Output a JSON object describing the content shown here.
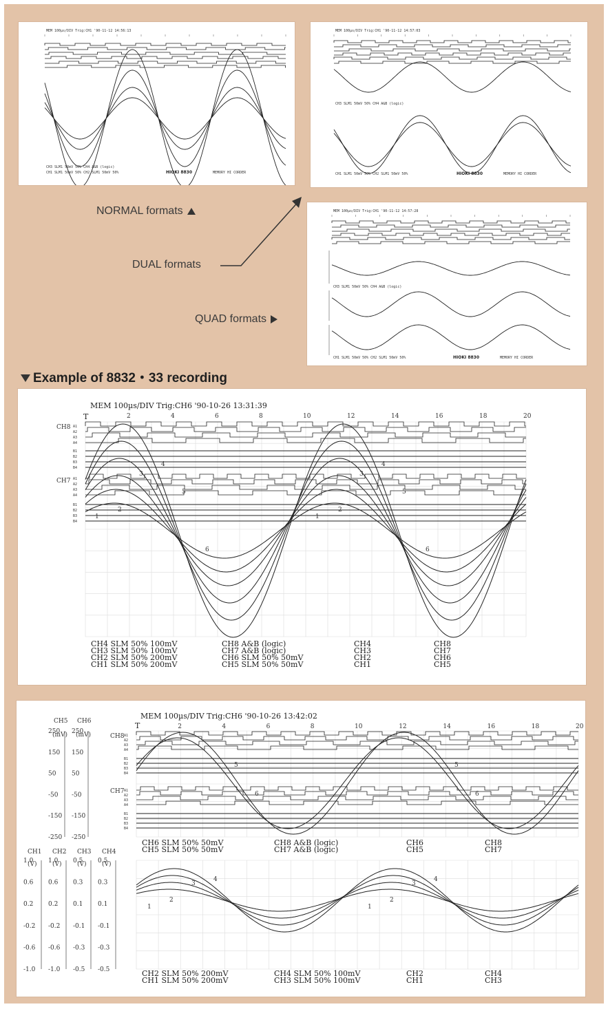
{
  "labels": {
    "normal": "NORMAL formats",
    "dual": "DUAL formats",
    "quad": "QUAD formats",
    "example_header": "Example of 8832・33 recording"
  },
  "thumb_normal": {
    "header": "MEM  100µs/DIV Trig:CH1 '90-11-12 14:56:13",
    "footer1": "CH3 SLM1  50mV  50%  CH4 A&B (logic)",
    "footer2": "CH1 SLM1  50mV  50%  CH2 SLM1  50mV  50%",
    "brand": "HIOKI 8830",
    "model_text": "MEMORY HI CORDER"
  },
  "thumb_dual": {
    "header": "MEM  100µs/DIV Trig:CH1 '90-11-12 14:57:03",
    "mid": "CH3 SLM1  50mV  50%  CH4 A&B (logic)",
    "footer": "CH1 SLM1  50mV  50%  CH2 SLM1  50mV  50%",
    "brand": "HIOKI 8830",
    "model_text": "MEMORY HI CORDER"
  },
  "thumb_quad": {
    "header": "MEM  100µs/DIV Trig:CH1 '90-11-12 14:57:28",
    "mid": "CH3 SLM1  50mV  50%  CH4 A&B (logic)",
    "footer": "CH1 SLM1  50mV  50%  CH2 SLM1  50mV  50%",
    "brand": "HIOKI 8830",
    "model_text": "MEMORY HI CORDER"
  },
  "panel1": {
    "header": "MEM   100µs/DIV Trig:CH6 '90-10-26 13:31:39",
    "ticks": [
      "2",
      "4",
      "6",
      "8",
      "10",
      "12",
      "14",
      "16",
      "18",
      "20"
    ],
    "trig_marker": "T",
    "ch_labels": [
      "CH8",
      "CH7"
    ],
    "logic_labels": [
      "A1",
      "A2",
      "A3",
      "A4",
      "B1",
      "B2",
      "B3",
      "B4"
    ],
    "wave_labels": [
      "1",
      "2",
      "3",
      "4",
      "5",
      "6"
    ],
    "footer_col1": [
      "CH4 SLM  50%   100mV",
      "CH3 SLM  50%   100mV",
      "CH2 SLM  50%   200mV",
      "CH1 SLM  50%   200mV"
    ],
    "footer_col2": [
      "CH8 A&B (logic)",
      "CH7 A&B (logic)",
      "CH6 SLM  50%    50mV",
      "CH5 SLM  50%    50mV"
    ],
    "footer_col3": [
      "CH4",
      "CH3",
      "CH2",
      "CH1"
    ],
    "footer_col4": [
      "CH8",
      "CH7",
      "CH6",
      "CH5"
    ]
  },
  "panel2": {
    "header": "MEM   100µs/DIV Trig:CH6 '90-10-26 13:42:02",
    "ticks": [
      "2",
      "4",
      "6",
      "8",
      "10",
      "12",
      "14",
      "16",
      "18",
      "20"
    ],
    "trig_marker": "T",
    "ch_labels": [
      "CH8",
      "CH7"
    ],
    "logic_labels": [
      "A1",
      "A2",
      "A3",
      "A4",
      "B1",
      "B2",
      "B3",
      "B4"
    ],
    "wave_labels_top": [
      "5",
      "6"
    ],
    "wave_labels_bottom": [
      "1",
      "2",
      "3",
      "4"
    ],
    "scale_top": {
      "headers": [
        "CH5",
        "CH6"
      ],
      "units": [
        "(mV)",
        "(mV)"
      ],
      "values": [
        "250",
        "150",
        "50",
        "-50",
        "-150",
        "-250"
      ]
    },
    "scale_bottom": {
      "headers": [
        "CH1",
        "CH2",
        "CH3",
        "CH4"
      ],
      "units": [
        "(V)",
        "(V)",
        "(V)",
        "(V)"
      ],
      "col1": [
        "1.0",
        "0.6",
        "0.2",
        "-0.2",
        "-0.6",
        "-1.0"
      ],
      "col2": [
        "1.0",
        "0.6",
        "0.2",
        "-0.2",
        "-0.6",
        "-1.0"
      ],
      "col3": [
        "0.5",
        "0.3",
        "0.1",
        "-0.1",
        "-0.3",
        "-0.5"
      ],
      "col4": [
        "0.5",
        "0.3",
        "0.1",
        "-0.1",
        "-0.3",
        "-0.5"
      ]
    },
    "mid_col1": [
      "CH6 SLM  50%   50mV",
      "CH5 SLM  50%   50mV"
    ],
    "mid_col2": [
      "CH8 A&B (logic)",
      "CH7 A&B (logic)"
    ],
    "mid_col3": [
      "CH6",
      "CH5"
    ],
    "mid_col4": [
      "CH8",
      "CH7"
    ],
    "footer_col1": [
      "CH2 SLM  50%   200mV",
      "CH1 SLM  50%   200mV"
    ],
    "footer_col2": [
      "CH4 SLM  50%   100mV",
      "CH3 SLM  50%   100mV"
    ],
    "footer_col3": [
      "CH2",
      "CH1"
    ],
    "footer_col4": [
      "CH4",
      "CH3"
    ]
  }
}
